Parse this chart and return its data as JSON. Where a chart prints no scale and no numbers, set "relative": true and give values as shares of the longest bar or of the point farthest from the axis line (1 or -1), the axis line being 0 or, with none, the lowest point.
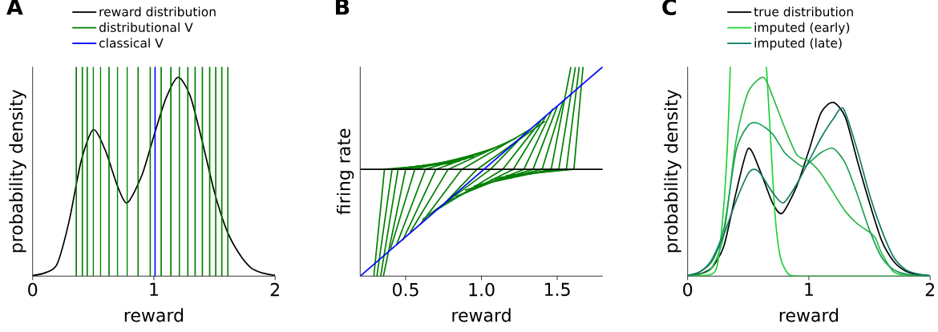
{
  "chart_data": [
    {
      "type": "line",
      "title": "A",
      "xlabel": "reward",
      "ylabel": "probability density",
      "xlim": [
        0,
        2
      ],
      "xticks": [
        0,
        1,
        2
      ],
      "relative": true,
      "tick_labels": "x",
      "legend": "top",
      "series": [
        {
          "name": "reward distribution",
          "color": "#000000",
          "x": [
            0,
            0.1,
            0.2,
            0.3,
            0.4,
            0.5,
            0.6,
            0.7,
            0.78,
            0.9,
            1.0,
            1.1,
            1.2,
            1.3,
            1.4,
            1.5,
            1.6,
            1.7,
            1.8,
            1.9,
            2.0
          ],
          "values": [
            0.003,
            0.015,
            0.055,
            0.26,
            0.55,
            0.7,
            0.6,
            0.43,
            0.35,
            0.48,
            0.67,
            0.85,
            0.95,
            0.86,
            0.64,
            0.4,
            0.22,
            0.11,
            0.04,
            0.014,
            0.004
          ]
        },
        {
          "name": "distributional V",
          "color": "#008000",
          "x": [
            0.36,
            0.36
          ],
          "values": [
            0,
            1
          ]
        },
        {
          "color": "#008000",
          "x": [
            0.41,
            0.41
          ],
          "values": [
            0,
            1
          ]
        },
        {
          "color": "#008000",
          "x": [
            0.45,
            0.45
          ],
          "values": [
            0,
            1
          ]
        },
        {
          "color": "#008000",
          "x": [
            0.5,
            0.5
          ],
          "values": [
            0,
            1
          ]
        },
        {
          "color": "#008000",
          "x": [
            0.56,
            0.56
          ],
          "values": [
            0,
            1
          ]
        },
        {
          "color": "#008000",
          "x": [
            0.63,
            0.63
          ],
          "values": [
            0,
            1
          ]
        },
        {
          "color": "#008000",
          "x": [
            0.7,
            0.7
          ],
          "values": [
            0,
            1
          ]
        },
        {
          "color": "#008000",
          "x": [
            0.78,
            0.78
          ],
          "values": [
            0,
            1
          ]
        },
        {
          "color": "#008000",
          "x": [
            0.87,
            0.87
          ],
          "values": [
            0,
            1
          ]
        },
        {
          "color": "#008000",
          "x": [
            0.97,
            0.97
          ],
          "values": [
            0,
            1
          ]
        },
        {
          "color": "#008000",
          "x": [
            1.06,
            1.06
          ],
          "values": [
            0,
            1
          ]
        },
        {
          "color": "#008000",
          "x": [
            1.14,
            1.14
          ],
          "values": [
            0,
            1
          ]
        },
        {
          "color": "#008000",
          "x": [
            1.21,
            1.21
          ],
          "values": [
            0,
            1
          ]
        },
        {
          "color": "#008000",
          "x": [
            1.28,
            1.28
          ],
          "values": [
            0,
            1
          ]
        },
        {
          "color": "#008000",
          "x": [
            1.34,
            1.34
          ],
          "values": [
            0,
            1
          ]
        },
        {
          "color": "#008000",
          "x": [
            1.4,
            1.4
          ],
          "values": [
            0,
            1
          ]
        },
        {
          "color": "#008000",
          "x": [
            1.46,
            1.46
          ],
          "values": [
            0,
            1
          ]
        },
        {
          "color": "#008000",
          "x": [
            1.51,
            1.51
          ],
          "values": [
            0,
            1
          ]
        },
        {
          "color": "#008000",
          "x": [
            1.56,
            1.56
          ],
          "values": [
            0,
            1
          ]
        },
        {
          "color": "#008000",
          "x": [
            1.61,
            1.61
          ],
          "values": [
            0,
            1
          ]
        },
        {
          "name": "classical V",
          "color": "#0000ff",
          "x": [
            1.01,
            1.01
          ],
          "values": [
            0,
            1
          ]
        }
      ]
    },
    {
      "type": "line",
      "title": "B",
      "xlabel": "reward",
      "ylabel": "firing rate",
      "xlim": [
        0.2,
        1.8
      ],
      "xticks": [
        {
          "value": 0.5,
          "label": "0.5"
        },
        {
          "value": 1,
          "label": "1.0"
        },
        {
          "value": 1.5,
          "label": "1.5"
        }
      ],
      "relative": true,
      "tick_labels": "x",
      "series": [
        {
          "color": "#008000",
          "x": [
            0.29,
            0.36,
            0.81
          ],
          "values": [
            0,
            0.51,
            0.54
          ]
        },
        {
          "color": "#008000",
          "x": [
            0.31,
            0.41,
            0.86
          ],
          "values": [
            0,
            0.51,
            0.55
          ]
        },
        {
          "color": "#008000",
          "x": [
            0.335,
            0.45,
            0.9
          ],
          "values": [
            0,
            0.51,
            0.56
          ]
        },
        {
          "color": "#008000",
          "x": [
            0.353,
            0.5,
            0.95
          ],
          "values": [
            0,
            0.51,
            0.57
          ]
        },
        {
          "color": "#008000",
          "x": [
            0.4,
            0.56,
            1.01
          ],
          "values": [
            0.13,
            0.51,
            0.59
          ]
        },
        {
          "color": "#008000",
          "x": [
            0.44,
            0.63,
            1.08
          ],
          "values": [
            0.15,
            0.51,
            0.61
          ]
        },
        {
          "color": "#008000",
          "x": [
            0.48,
            0.7,
            1.15
          ],
          "values": [
            0.17,
            0.51,
            0.63
          ]
        },
        {
          "color": "#008000",
          "x": [
            0.53,
            0.78,
            1.23
          ],
          "values": [
            0.21,
            0.51,
            0.66
          ]
        },
        {
          "color": "#008000",
          "x": [
            0.6,
            0.87,
            1.32
          ],
          "values": [
            0.25,
            0.51,
            0.7
          ]
        },
        {
          "color": "#008000",
          "x": [
            0.76,
            0.97,
            1.42
          ],
          "values": [
            0.35,
            0.51,
            0.74
          ]
        },
        {
          "color": "#008000",
          "x": [
            0.61,
            1.06,
            1.3
          ],
          "values": [
            0.27,
            0.51,
            0.69
          ]
        },
        {
          "color": "#008000",
          "x": [
            0.69,
            1.14,
            1.39
          ],
          "values": [
            0.31,
            0.51,
            0.74
          ]
        },
        {
          "color": "#008000",
          "x": [
            0.76,
            1.21,
            1.43
          ],
          "values": [
            0.35,
            0.51,
            0.77
          ]
        },
        {
          "color": "#008000",
          "x": [
            0.83,
            1.28,
            1.47
          ],
          "values": [
            0.38,
            0.51,
            0.8
          ]
        },
        {
          "color": "#008000",
          "x": [
            0.89,
            1.34,
            1.5
          ],
          "values": [
            0.41,
            0.51,
            0.81
          ]
        },
        {
          "color": "#008000",
          "x": [
            0.95,
            1.4,
            1.54
          ],
          "values": [
            0.43,
            0.51,
            0.84
          ]
        },
        {
          "color": "#008000",
          "x": [
            1.01,
            1.46,
            1.59
          ],
          "values": [
            0.44,
            0.51,
            1
          ]
        },
        {
          "color": "#008000",
          "x": [
            1.06,
            1.51,
            1.62
          ],
          "values": [
            0.46,
            0.51,
            1
          ]
        },
        {
          "color": "#008000",
          "x": [
            1.11,
            1.56,
            1.645
          ],
          "values": [
            0.47,
            0.51,
            1
          ]
        },
        {
          "color": "#008000",
          "x": [
            1.16,
            1.61,
            1.67
          ],
          "values": [
            0.48,
            0.51,
            1
          ]
        },
        {
          "color": "#000000",
          "x": [
            0.2,
            1.8
          ],
          "values": [
            0.51,
            0.51
          ]
        },
        {
          "color": "#0000ff",
          "x": [
            0.2,
            1.8
          ],
          "values": [
            0,
            1
          ]
        }
      ]
    },
    {
      "type": "line",
      "title": "C",
      "xlabel": "reward",
      "ylabel": "probability density",
      "xlim": [
        0,
        2
      ],
      "xticks": [
        0,
        1,
        2
      ],
      "relative": true,
      "tick_labels": "x",
      "legend": "top",
      "series": [
        {
          "name": "true distribution",
          "color": "#000000",
          "x": [
            0,
            0.1,
            0.2,
            0.3,
            0.4,
            0.5,
            0.6,
            0.7,
            0.78,
            0.9,
            1.0,
            1.1,
            1.2,
            1.3,
            1.4,
            1.5,
            1.6,
            1.7,
            1.8,
            1.9,
            2.0
          ],
          "values": [
            0.003,
            0.01,
            0.04,
            0.145,
            0.4,
            0.61,
            0.5,
            0.35,
            0.3,
            0.43,
            0.6,
            0.78,
            0.83,
            0.76,
            0.55,
            0.35,
            0.17,
            0.07,
            0.023,
            0.007,
            0.002
          ]
        },
        {
          "name": "imputed (early)",
          "color": "#1fd23a",
          "x": [
            0,
            0.2,
            0.25,
            0.3,
            0.33,
            0.352,
            0.5,
            0.65,
            0.68,
            0.72,
            0.765,
            0.83,
            0.9,
            1.0,
            2.0
          ],
          "values": [
            0,
            0.01,
            0.07,
            0.35,
            0.65,
            1,
            null,
            1,
            0.7,
            0.3,
            0.09,
            0.01,
            0,
            0,
            0
          ]
        },
        {
          "color": "#2cbb48",
          "x": [
            0,
            0.1,
            0.2,
            0.3,
            0.4,
            0.5,
            0.625,
            0.7,
            0.8,
            0.9,
            1.0,
            1.1,
            1.2,
            1.3,
            1.4,
            1.5,
            1.55,
            1.6,
            1.7,
            1.8,
            1.9,
            2.0
          ],
          "values": [
            0.002,
            0.008,
            0.04,
            0.2,
            0.65,
            0.88,
            0.95,
            0.86,
            0.71,
            0.58,
            0.55,
            0.49,
            0.4,
            0.31,
            0.25,
            0.21,
            0.18,
            0.11,
            0.02,
            0.005,
            0.001,
            0
          ]
        },
        {
          "color": "#1f9f58",
          "x": [
            0,
            0.1,
            0.2,
            0.3,
            0.4,
            0.5,
            0.58,
            0.7,
            0.8,
            0.9,
            0.96,
            1.0,
            1.1,
            1.2,
            1.3,
            1.4,
            1.5,
            1.6,
            1.7,
            1.8,
            1.9,
            2.0
          ],
          "values": [
            0.003,
            0.02,
            0.08,
            0.23,
            0.6,
            0.72,
            0.73,
            0.68,
            0.59,
            0.54,
            0.52,
            0.54,
            0.59,
            0.61,
            0.54,
            0.39,
            0.22,
            0.09,
            0.03,
            0.01,
            0.003,
            0.001
          ]
        },
        {
          "name": "imputed (late)",
          "color": "#137a68",
          "x": [
            0,
            0.1,
            0.2,
            0.3,
            0.4,
            0.5,
            0.55,
            0.6,
            0.7,
            0.79,
            0.9,
            1.0,
            1.1,
            1.2,
            1.285,
            1.4,
            1.5,
            1.6,
            1.7,
            1.8,
            1.9,
            2.0
          ],
          "values": [
            0.003,
            0.02,
            0.07,
            0.2,
            0.36,
            0.49,
            0.51,
            0.49,
            0.4,
            0.35,
            0.44,
            0.55,
            0.66,
            0.75,
            0.8,
            0.6,
            0.39,
            0.22,
            0.09,
            0.03,
            0.01,
            0.002
          ]
        }
      ]
    }
  ]
}
